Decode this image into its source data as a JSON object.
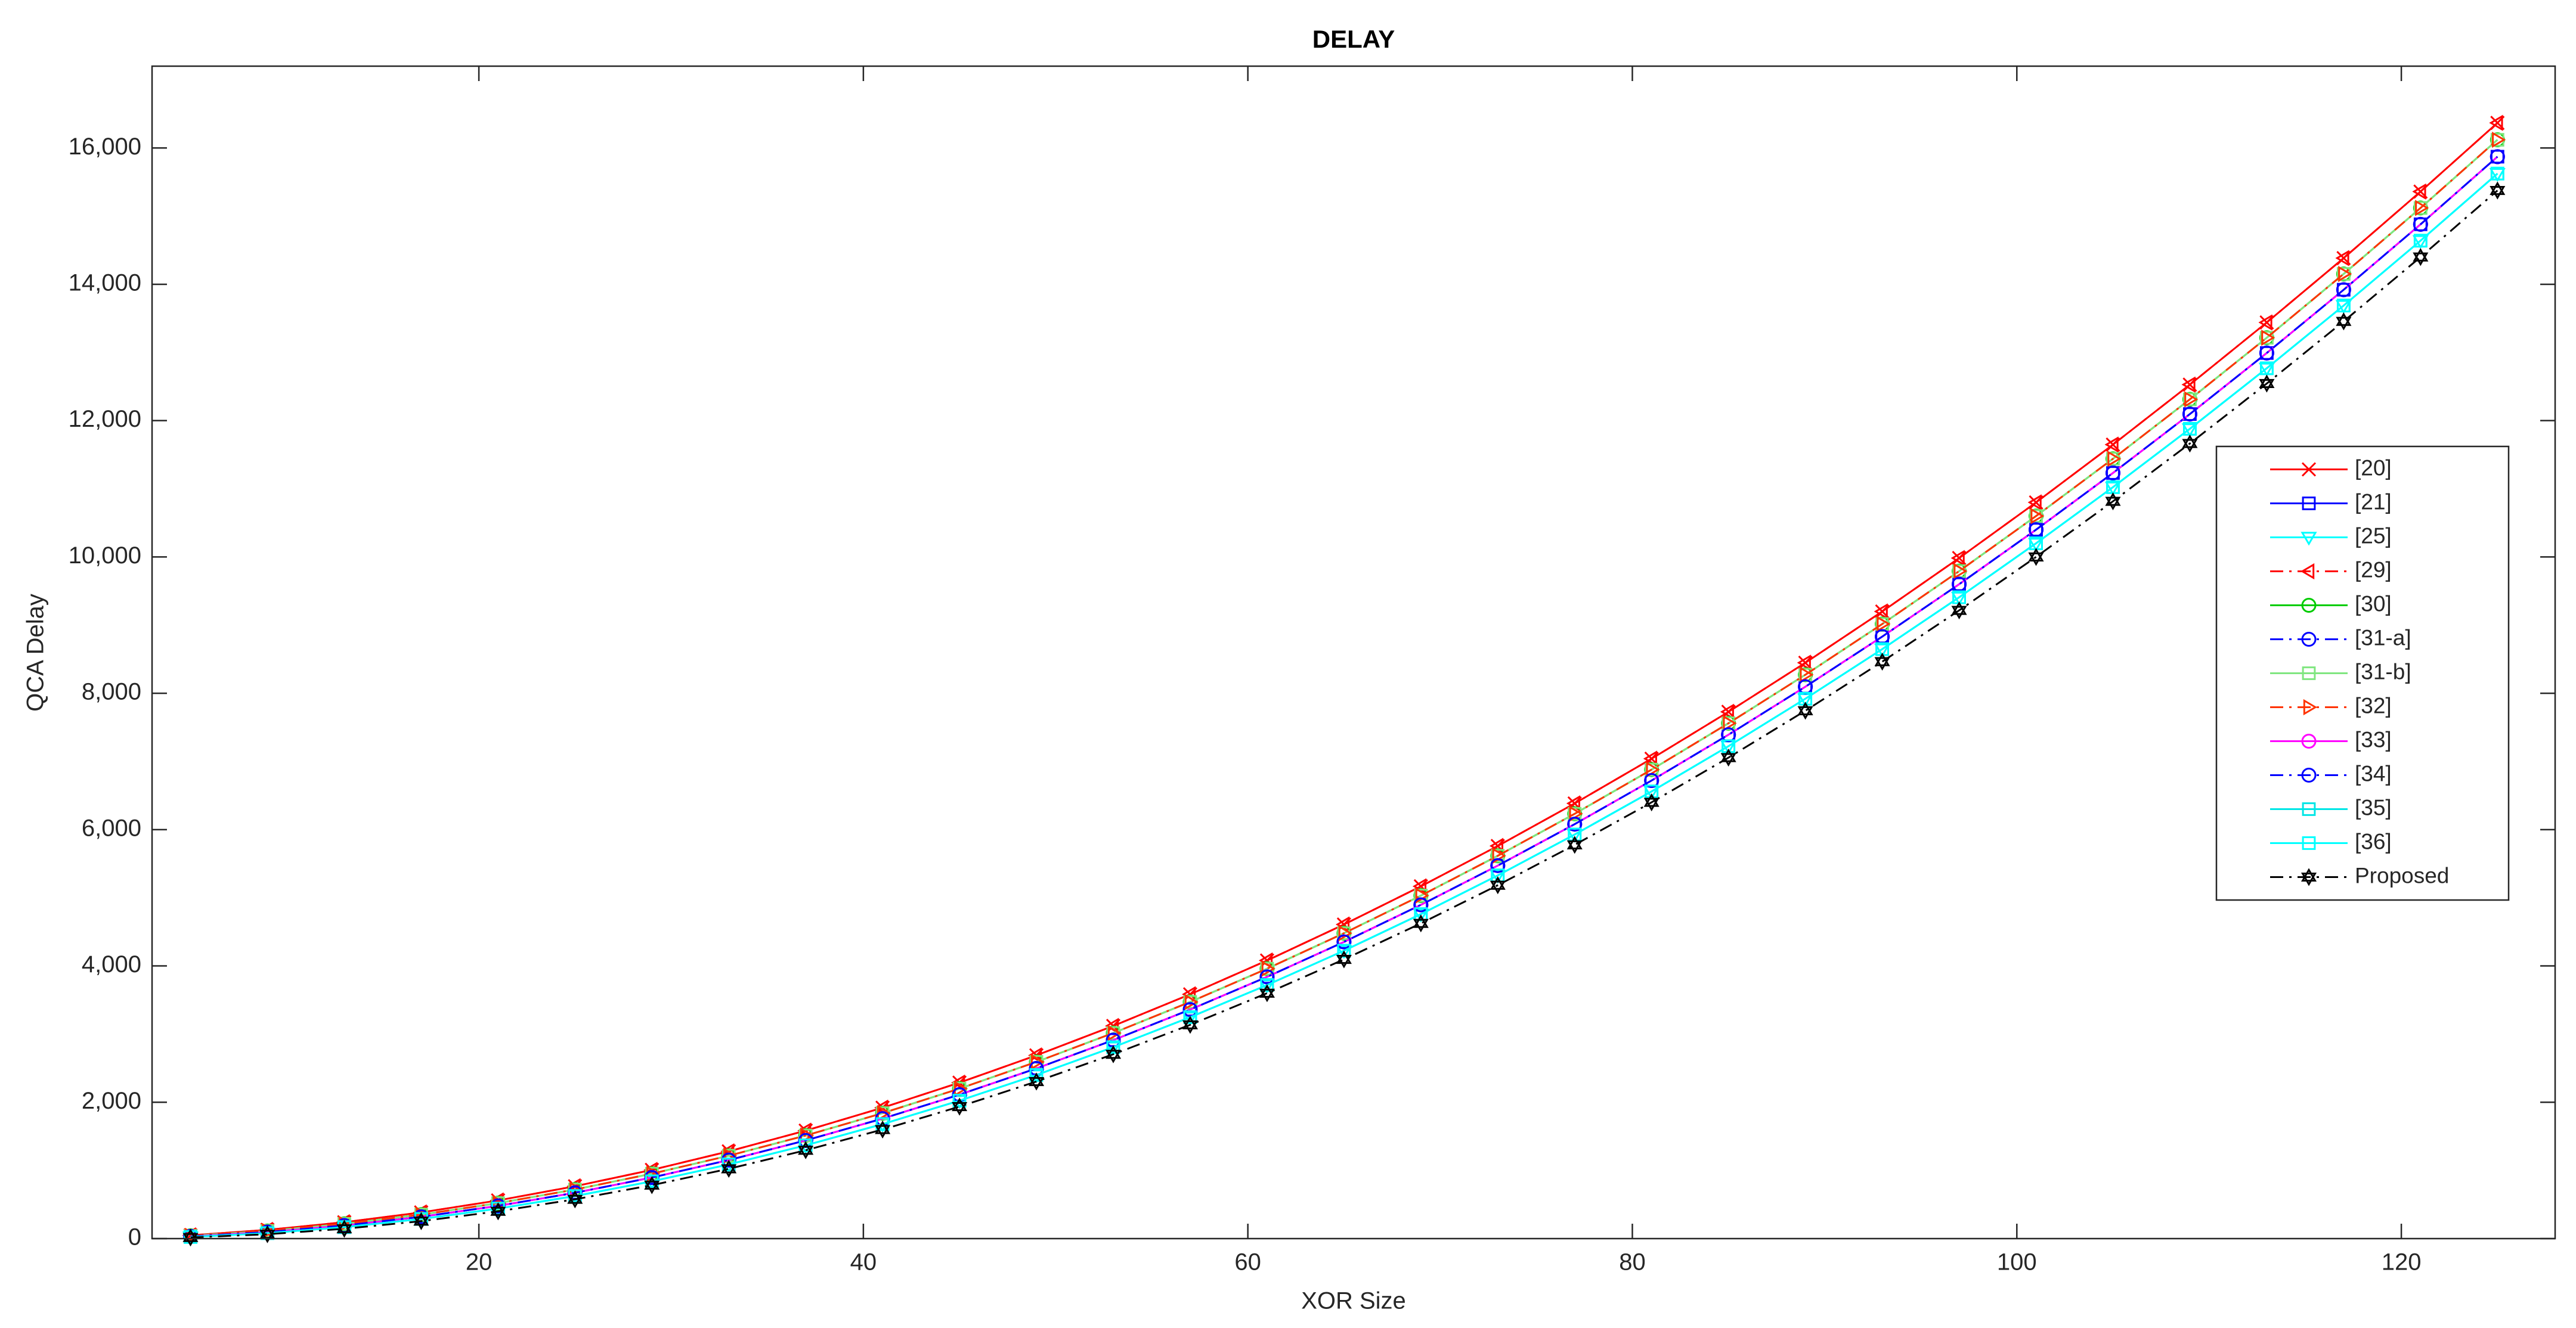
{
  "chart_data": {
    "type": "line",
    "title": "DELAY",
    "x_label": "XOR Size",
    "y_label": "QCA Delay",
    "x": [
      5,
      9,
      13,
      17,
      21,
      25,
      29,
      33,
      37,
      41,
      45,
      49,
      53,
      57,
      61,
      65,
      69,
      73,
      77,
      81,
      85,
      89,
      93,
      97,
      101,
      105,
      109,
      113,
      117,
      121,
      125
    ],
    "xlim": [
      3,
      128
    ],
    "xticks": [
      20,
      40,
      60,
      80,
      100,
      120
    ],
    "ylim": [
      0,
      17200
    ],
    "yticks": [
      0,
      {
        "value": 2000,
        "label": "2,000"
      },
      {
        "value": 4000,
        "label": "4,000"
      },
      {
        "value": 6000,
        "label": "6,000"
      },
      {
        "value": 8000,
        "label": "8,000"
      },
      {
        "value": 10000,
        "label": "10,000"
      },
      {
        "value": 12000,
        "label": "12,000"
      },
      {
        "value": 14000,
        "label": "14,000"
      },
      {
        "value": 16000,
        "label": "16,000"
      }
    ],
    "grid": false,
    "legend": "east",
    "series": [
      {
        "name": "[20]",
        "color": "#ff0000",
        "marker": "x",
        "linestyle": "solid",
        "values": [
          48,
          128,
          240,
          384,
          560,
          768,
          1008,
          1280,
          1584,
          1920,
          2288,
          2688,
          3120,
          3584,
          4080,
          4608,
          5168,
          5760,
          6384,
          7040,
          7728,
          8448,
          9200,
          9984,
          10800,
          11648,
          12528,
          13440,
          14384,
          15360,
          16368
        ]
      },
      {
        "name": "[21]",
        "color": "#0000ff",
        "marker": "square",
        "linestyle": "solid",
        "values": [
          32,
          96,
          192,
          320,
          480,
          672,
          896,
          1152,
          1440,
          1760,
          2112,
          2496,
          2912,
          3360,
          3840,
          4352,
          4896,
          5472,
          6080,
          6720,
          7392,
          8096,
          8832,
          9600,
          10400,
          11232,
          12096,
          12992,
          13920,
          14880,
          15872
        ]
      },
      {
        "name": "[25]",
        "color": "#00ffff",
        "marker": "triangle-down",
        "linestyle": "solid",
        "values": [
          24,
          80,
          168,
          288,
          440,
          624,
          840,
          1088,
          1368,
          1680,
          2024,
          2400,
          2808,
          3248,
          3720,
          4224,
          4760,
          5328,
          5928,
          6560,
          7224,
          7920,
          8648,
          9408,
          10200,
          11024,
          11880,
          12768,
          13688,
          14640,
          15624
        ]
      },
      {
        "name": "[29]",
        "color": "#ff0000",
        "marker": "triangle-left",
        "linestyle": "dashdot",
        "values": [
          48,
          128,
          240,
          384,
          560,
          768,
          1008,
          1280,
          1584,
          1920,
          2288,
          2688,
          3120,
          3584,
          4080,
          4608,
          5168,
          5760,
          6384,
          7040,
          7728,
          8448,
          9200,
          9984,
          10800,
          11648,
          12528,
          13440,
          14384,
          15360,
          16368
        ]
      },
      {
        "name": "[30]",
        "color": "#00cc00",
        "marker": "circle",
        "linestyle": "solid",
        "values": [
          40,
          112,
          216,
          352,
          520,
          720,
          952,
          1216,
          1512,
          1840,
          2200,
          2592,
          3016,
          3472,
          3960,
          4480,
          5032,
          5616,
          6232,
          6880,
          7560,
          8272,
          9016,
          9792,
          10600,
          11440,
          12312,
          13216,
          14152,
          15120,
          16120
        ]
      },
      {
        "name": "[31-a]",
        "color": "#0000ff",
        "marker": "circle",
        "linestyle": "dashdot",
        "values": [
          32,
          96,
          192,
          320,
          480,
          672,
          896,
          1152,
          1440,
          1760,
          2112,
          2496,
          2912,
          3360,
          3840,
          4352,
          4896,
          5472,
          6080,
          6720,
          7392,
          8096,
          8832,
          9600,
          10400,
          11232,
          12096,
          12992,
          13920,
          14880,
          15872
        ]
      },
      {
        "name": "[31-b]",
        "color": "#80e680",
        "marker": "square",
        "linestyle": "solid",
        "values": [
          40,
          112,
          216,
          352,
          520,
          720,
          952,
          1216,
          1512,
          1840,
          2200,
          2592,
          3016,
          3472,
          3960,
          4480,
          5032,
          5616,
          6232,
          6880,
          7560,
          8272,
          9016,
          9792,
          10600,
          11440,
          12312,
          13216,
          14152,
          15120,
          16120
        ]
      },
      {
        "name": "[32]",
        "color": "#ff3300",
        "marker": "triangle-right",
        "linestyle": "dashdot",
        "values": [
          40,
          112,
          216,
          352,
          520,
          720,
          952,
          1216,
          1512,
          1840,
          2200,
          2592,
          3016,
          3472,
          3960,
          4480,
          5032,
          5616,
          6232,
          6880,
          7560,
          8272,
          9016,
          9792,
          10600,
          11440,
          12312,
          13216,
          14152,
          15120,
          16120
        ]
      },
      {
        "name": "[33]",
        "color": "#ff00ff",
        "marker": "circle",
        "linestyle": "solid",
        "values": [
          32,
          96,
          192,
          320,
          480,
          672,
          896,
          1152,
          1440,
          1760,
          2112,
          2496,
          2912,
          3360,
          3840,
          4352,
          4896,
          5472,
          6080,
          6720,
          7392,
          8096,
          8832,
          9600,
          10400,
          11232,
          12096,
          12992,
          13920,
          14880,
          15872
        ]
      },
      {
        "name": "[34]",
        "color": "#0000ff",
        "marker": "circle",
        "linestyle": "dashdot",
        "values": [
          32,
          96,
          192,
          320,
          480,
          672,
          896,
          1152,
          1440,
          1760,
          2112,
          2496,
          2912,
          3360,
          3840,
          4352,
          4896,
          5472,
          6080,
          6720,
          7392,
          8096,
          8832,
          9600,
          10400,
          11232,
          12096,
          12992,
          13920,
          14880,
          15872
        ]
      },
      {
        "name": "[35]",
        "color": "#00e6e6",
        "marker": "square",
        "linestyle": "solid",
        "values": [
          24,
          80,
          168,
          288,
          440,
          624,
          840,
          1088,
          1368,
          1680,
          2024,
          2400,
          2808,
          3248,
          3720,
          4224,
          4760,
          5328,
          5928,
          6560,
          7224,
          7920,
          8648,
          9408,
          10200,
          11024,
          11880,
          12768,
          13688,
          14640,
          15624
        ]
      },
      {
        "name": "[36]",
        "color": "#00ffff",
        "marker": "square",
        "linestyle": "solid",
        "values": [
          24,
          80,
          168,
          288,
          440,
          624,
          840,
          1088,
          1368,
          1680,
          2024,
          2400,
          2808,
          3248,
          3720,
          4224,
          4760,
          5328,
          5928,
          6560,
          7224,
          7920,
          8648,
          9408,
          10200,
          11024,
          11880,
          12768,
          13688,
          14640,
          15624
        ]
      },
      {
        "name": "Proposed",
        "color": "#000000",
        "marker": "hexagram",
        "linestyle": "dashdot",
        "values": [
          16,
          64,
          144,
          256,
          400,
          576,
          784,
          1024,
          1296,
          1600,
          1936,
          2304,
          2704,
          3136,
          3600,
          4096,
          4624,
          5184,
          5776,
          6400,
          7056,
          7744,
          8464,
          9216,
          10000,
          10816,
          11664,
          12544,
          13456,
          14400,
          15376
        ]
      }
    ]
  }
}
